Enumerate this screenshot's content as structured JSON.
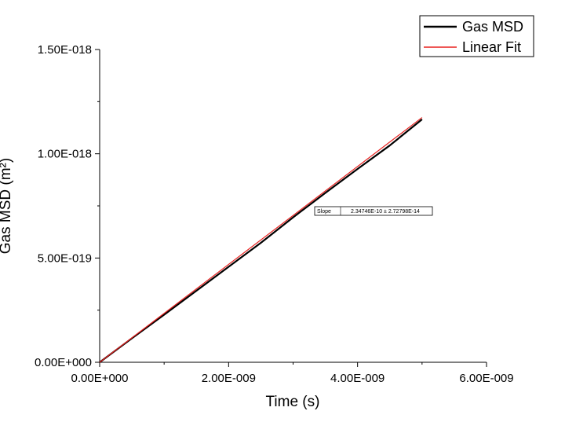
{
  "chart_data": {
    "type": "line",
    "xlabel": "Time (s)",
    "ylabel": "Gas MSD (m²)",
    "xlim": [
      0,
      6e-09
    ],
    "ylim": [
      0,
      1.5e-18
    ],
    "x_ticks": [
      0,
      2e-09,
      4e-09,
      6e-09
    ],
    "x_tick_labels": [
      "0.00E+000",
      "2.00E-009",
      "4.00E-009",
      "6.00E-009"
    ],
    "y_ticks": [
      0,
      5e-19,
      1e-18,
      1.5e-18
    ],
    "y_tick_labels": [
      "0.00E+000",
      "5.00E-019",
      "1.00E-018",
      "1.50E-018"
    ],
    "legend_position": "top-right",
    "grid": false,
    "series": [
      {
        "name": "Gas MSD",
        "color": "#000000",
        "x": [
          0,
          5e-10,
          1e-09,
          1.5e-09,
          2e-09,
          2.5e-09,
          3e-09,
          3.5e-09,
          4e-09,
          4.5e-09,
          5e-09
        ],
        "y": [
          0,
          1.15e-19,
          2.28e-19,
          3.43e-19,
          4.58e-19,
          5.73e-19,
          6.95e-19,
          8.12e-19,
          9.27e-19,
          1.04e-18,
          1.165e-18
        ]
      },
      {
        "name": "Linear Fit",
        "color": "#e8211f",
        "x": [
          0,
          5e-09
        ],
        "y": [
          0,
          1.1737e-18
        ]
      }
    ],
    "annotation_table": {
      "label": "Slope",
      "value": "2.34746E-10 ± 2.72798E-14"
    }
  }
}
